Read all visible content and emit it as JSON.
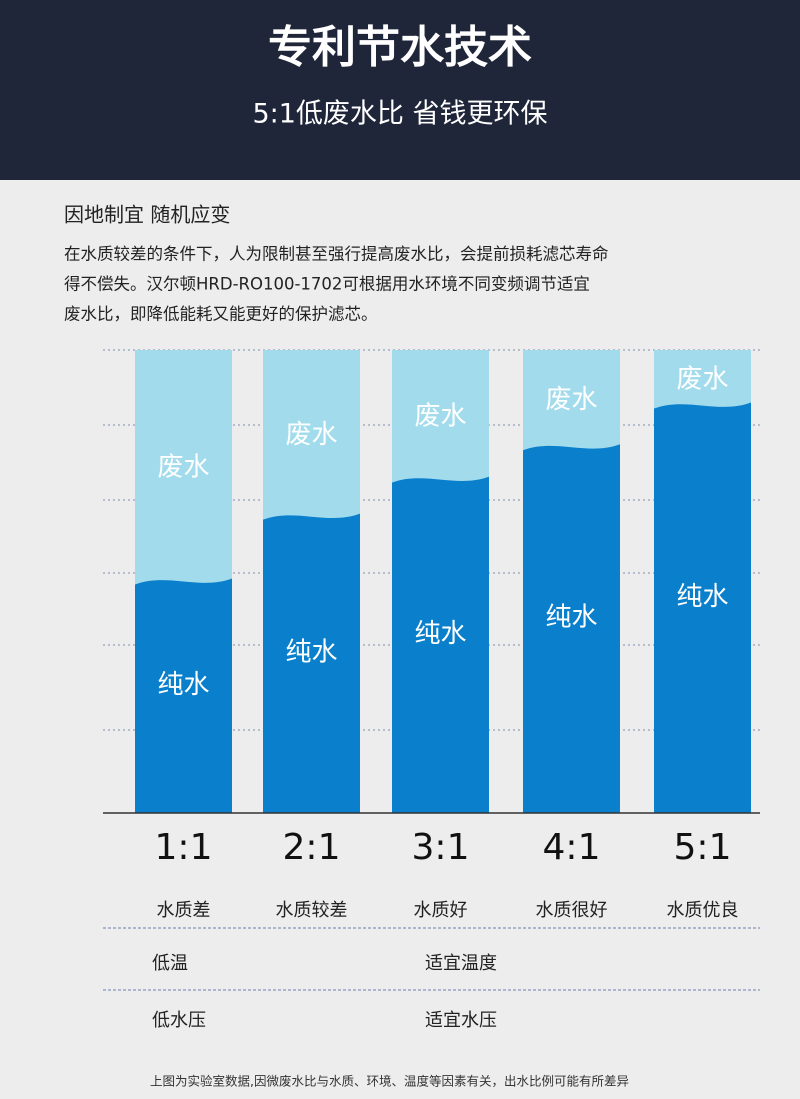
{
  "header": {
    "title": "专利节水技术",
    "subtitle": "5:1低废水比 省钱更环保"
  },
  "section": {
    "heading": "因地制宜 随机应变",
    "lines": [
      "在水质较差的条件下，人为限制甚至强行提高废水比，会提前损耗滤芯寿命",
      "得不偿失。汉尔顿HRD-RO100-1702可根据用水环境不同变频调节适宜",
      "废水比，即降低能耗又能更好的保护滤芯。"
    ]
  },
  "chart_data": {
    "type": "bar",
    "stacked": true,
    "categories": [
      "1:1",
      "2:1",
      "3:1",
      "4:1",
      "5:1"
    ],
    "series": [
      {
        "name": "纯水",
        "color": "#0a7fcc",
        "values": [
          50,
          64,
          72,
          79,
          88
        ]
      },
      {
        "name": "废水",
        "color": "#a2dcec",
        "values": [
          50,
          36,
          28,
          21,
          12
        ]
      }
    ],
    "ylim": [
      0,
      100
    ]
  },
  "table": {
    "rows": [
      [
        "水质差",
        "水质较差",
        "水质好",
        "水质很好",
        "水质优良"
      ],
      [
        "低温",
        "适宜温度"
      ],
      [
        "低水压",
        "适宜水压"
      ]
    ]
  },
  "footnote": "上图为实验室数据,因微废水比与水质、环境、温度等因素有关，出水比例可能有所差异"
}
